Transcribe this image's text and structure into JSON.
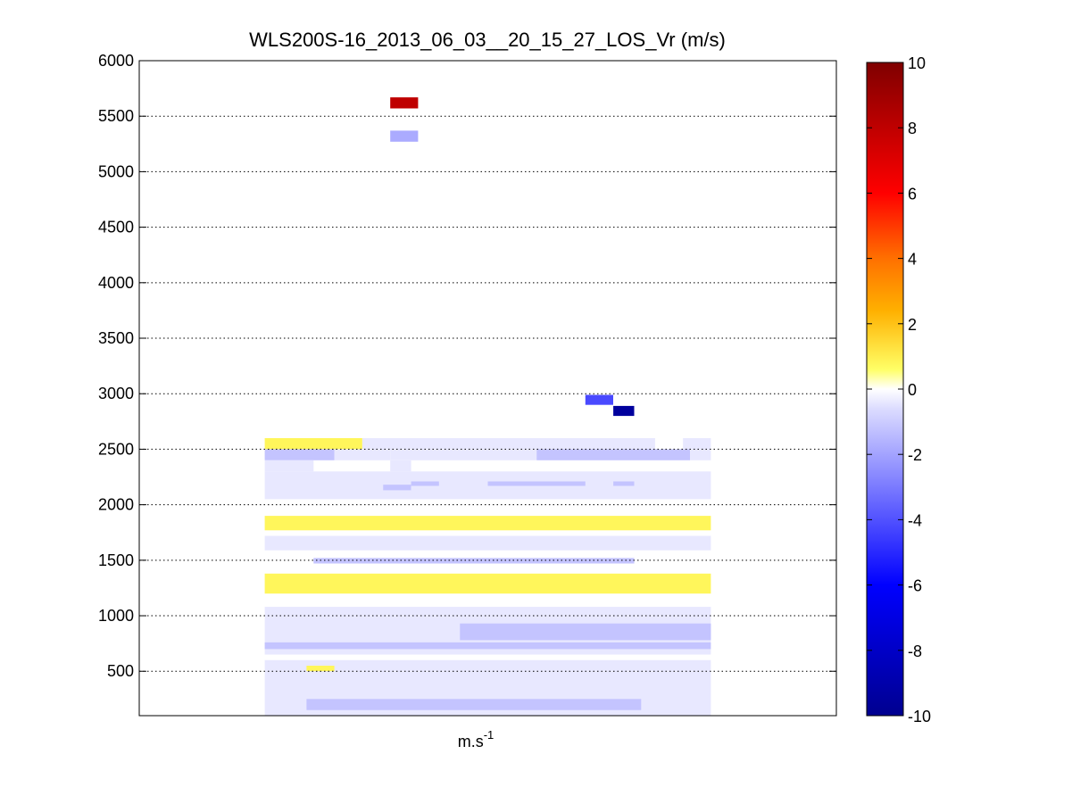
{
  "chart_data": {
    "type": "heatmap",
    "title": "WLS200S-16_2013_06_03__20_15_27_LOS_Vr (m/s)",
    "xlabel_base": "m.s",
    "xlabel_sup": "-1",
    "ylabel": "",
    "ylim": [
      100,
      6000
    ],
    "yticks": [
      500,
      1000,
      1500,
      2000,
      2500,
      3000,
      3500,
      4000,
      4500,
      5000,
      5500,
      6000
    ],
    "grid": "horizontal-dotted",
    "colorbar": {
      "clim": [
        -10,
        10
      ],
      "ticks": [
        -10,
        -8,
        -6,
        -4,
        -2,
        0,
        2,
        4,
        6,
        8,
        10
      ]
    },
    "cells": [
      {
        "x": [
          0.18,
          0.32
        ],
        "y": [
          2500,
          2600
        ],
        "v": 0.8
      },
      {
        "x": [
          0.32,
          0.74
        ],
        "y": [
          2500,
          2600
        ],
        "v": -0.4
      },
      {
        "x": [
          0.78,
          0.82
        ],
        "y": [
          2500,
          2600
        ],
        "v": -0.4
      },
      {
        "x": [
          0.18,
          0.28
        ],
        "y": [
          2400,
          2500
        ],
        "v": -1.2
      },
      {
        "x": [
          0.28,
          0.36
        ],
        "y": [
          2400,
          2500
        ],
        "v": -0.4
      },
      {
        "x": [
          0.36,
          0.57
        ],
        "y": [
          2400,
          2500
        ],
        "v": -0.4
      },
      {
        "x": [
          0.57,
          0.79
        ],
        "y": [
          2400,
          2500
        ],
        "v": -1.2
      },
      {
        "x": [
          0.79,
          0.82
        ],
        "y": [
          2400,
          2500
        ],
        "v": -0.4
      },
      {
        "x": [
          0.18,
          0.25
        ],
        "y": [
          2300,
          2400
        ],
        "v": -0.4
      },
      {
        "x": [
          0.36,
          0.39
        ],
        "y": [
          2300,
          2400
        ],
        "v": -0.4
      },
      {
        "x": [
          0.18,
          0.82
        ],
        "y": [
          2050,
          2300
        ],
        "v": -0.4
      },
      {
        "x": [
          0.35,
          0.39
        ],
        "y": [
          2130,
          2180
        ],
        "v": -1.2
      },
      {
        "x": [
          0.39,
          0.43
        ],
        "y": [
          2170,
          2210
        ],
        "v": -1.2
      },
      {
        "x": [
          0.5,
          0.64
        ],
        "y": [
          2170,
          2210
        ],
        "v": -1.2
      },
      {
        "x": [
          0.68,
          0.71
        ],
        "y": [
          2170,
          2210
        ],
        "v": -1.2
      },
      {
        "x": [
          0.18,
          0.82
        ],
        "y": [
          1770,
          1900
        ],
        "v": 0.8
      },
      {
        "x": [
          0.18,
          0.82
        ],
        "y": [
          1590,
          1720
        ],
        "v": -0.4
      },
      {
        "x": [
          0.25,
          0.71
        ],
        "y": [
          1470,
          1520
        ],
        "v": -1.2
      },
      {
        "x": [
          0.18,
          0.82
        ],
        "y": [
          1200,
          1380
        ],
        "v": 0.8
      },
      {
        "x": [
          0.18,
          0.82
        ],
        "y": [
          650,
          1080
        ],
        "v": -0.4
      },
      {
        "x": [
          0.46,
          0.82
        ],
        "y": [
          780,
          930
        ],
        "v": -1.2
      },
      {
        "x": [
          0.18,
          0.82
        ],
        "y": [
          700,
          760
        ],
        "v": -1.2
      },
      {
        "x": [
          0.18,
          0.82
        ],
        "y": [
          100,
          600
        ],
        "v": -0.4
      },
      {
        "x": [
          0.24,
          0.72
        ],
        "y": [
          150,
          250
        ],
        "v": -1.2
      },
      {
        "x": [
          0.24,
          0.28
        ],
        "y": [
          500,
          550
        ],
        "v": 0.8
      },
      {
        "x": [
          0.36,
          0.4
        ],
        "y": [
          5570,
          5670
        ],
        "v": 8
      },
      {
        "x": [
          0.36,
          0.4
        ],
        "y": [
          5270,
          5370
        ],
        "v": -1.8
      },
      {
        "x": [
          0.64,
          0.68
        ],
        "y": [
          2900,
          2990
        ],
        "v": -4.2
      },
      {
        "x": [
          0.68,
          0.71
        ],
        "y": [
          2800,
          2890
        ],
        "v": -9.5
      }
    ]
  }
}
